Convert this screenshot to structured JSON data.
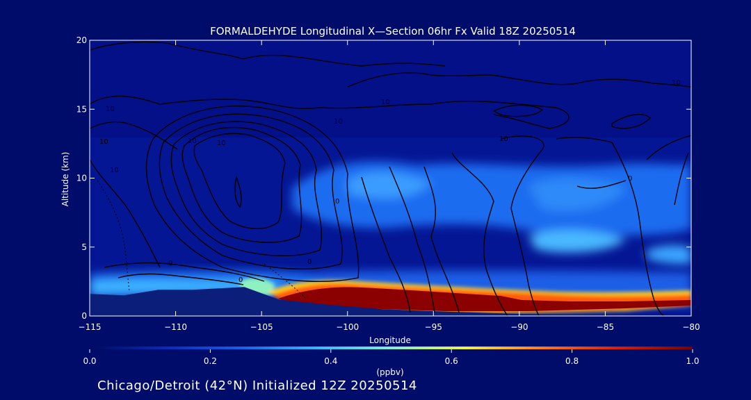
{
  "chart_data": {
    "type": "heatmap",
    "title": "FORMALDEHYDE Longitudinal X—Section 06hr  Fx Valid 18Z 20250514",
    "xlabel": "Longitude",
    "ylabel": "Altitude (km)",
    "xlim": [
      -115,
      -80
    ],
    "ylim": [
      0,
      20
    ],
    "x_ticks": [
      -115,
      -110,
      -105,
      -100,
      -95,
      -90,
      -85,
      -80
    ],
    "x_tick_labels": [
      "−115",
      "−110",
      "−105",
      "−100",
      "−95",
      "−90",
      "−85",
      "−80"
    ],
    "y_ticks": [
      0,
      5,
      10,
      15,
      20
    ],
    "y_tick_labels": [
      "0",
      "5",
      "10",
      "15",
      "20"
    ],
    "colorbar": {
      "label": "(ppbv)",
      "min": 0.0,
      "max": 1.0,
      "ticks": [
        0.0,
        0.2,
        0.4,
        0.6,
        0.8,
        1.0
      ],
      "tick_labels": [
        "0.0",
        "0.2",
        "0.4",
        "0.6",
        "0.8",
        "1.0"
      ],
      "colors": [
        "#000a5e",
        "#0a2ab8",
        "#1560ea",
        "#33b8ff",
        "#7ef0d8",
        "#f2f23c",
        "#ff7a14",
        "#dc1c0a",
        "#7a0000"
      ]
    },
    "terrain_km": [
      {
        "lon": -115,
        "alt": 1.6
      },
      {
        "lon": -113,
        "alt": 1.5
      },
      {
        "lon": -111,
        "alt": 1.9
      },
      {
        "lon": -109,
        "alt": 1.9
      },
      {
        "lon": -106,
        "alt": 2.1
      },
      {
        "lon": -104,
        "alt": 1.2
      },
      {
        "lon": -101,
        "alt": 0.8
      },
      {
        "lon": -98,
        "alt": 0.5
      },
      {
        "lon": -95,
        "alt": 0.35
      },
      {
        "lon": -90,
        "alt": 0.15
      },
      {
        "lon": -85,
        "alt": 0.05
      },
      {
        "lon": -80,
        "alt": 0.0
      }
    ],
    "high_hcho_layer": [
      {
        "lon": -104.5,
        "bottom": 1.2,
        "top": 2.0,
        "value": 0.95
      },
      {
        "lon": -100,
        "bottom": 0.8,
        "top": 2.3,
        "value": 1.0
      },
      {
        "lon": -95,
        "bottom": 0.45,
        "top": 1.7,
        "value": 1.0
      },
      {
        "lon": -90,
        "bottom": 0.2,
        "top": 1.4,
        "value": 1.0
      },
      {
        "lon": -85,
        "bottom": 0.1,
        "top": 1.3,
        "value": 1.0
      },
      {
        "lon": -80,
        "bottom": 0.0,
        "top": 1.3,
        "value": 1.0
      }
    ],
    "contour_labels": [
      "10",
      "10",
      "10",
      "10",
      "10",
      "10",
      "10",
      "10",
      "10",
      "0",
      "0",
      "0",
      "0",
      "0"
    ]
  },
  "footer": {
    "caption": "Chicago/Detroit (42°N) Initialized 12Z 20250514"
  },
  "colors": {
    "background": "#000c6a",
    "terrain": "#0b1f7a",
    "contour": "#000000"
  }
}
